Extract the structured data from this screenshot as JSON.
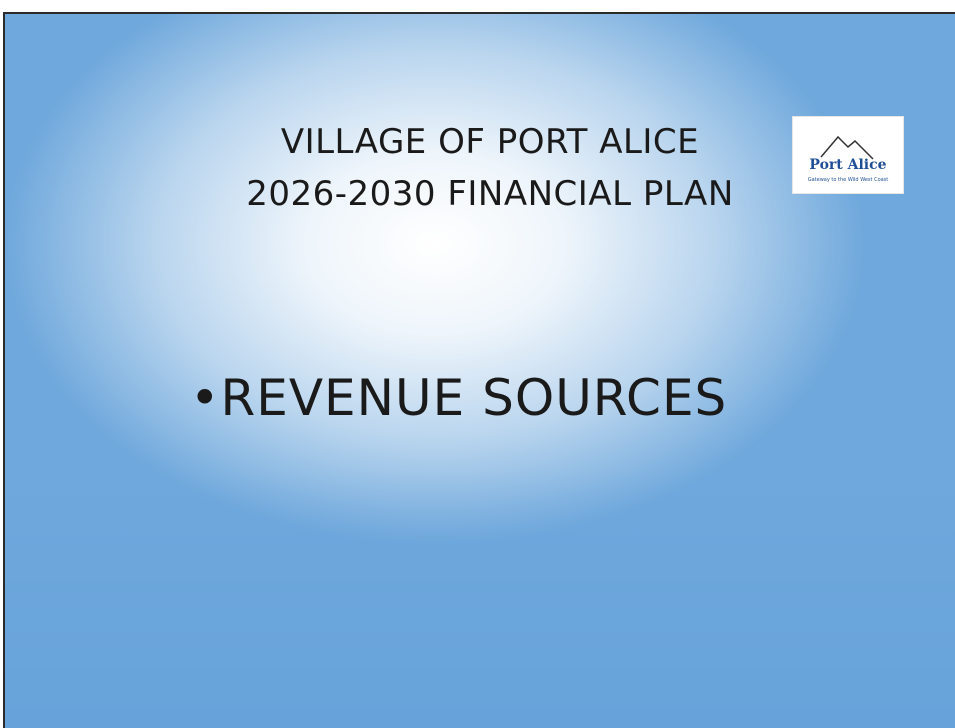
{
  "slide": {
    "title_lines": [
      "VILLAGE OF PORT ALICE",
      "2026-2030 FINANCIAL PLAN"
    ],
    "bullet": "•REVENUE SOURCES",
    "logo": {
      "name": "Port Alice",
      "tagline": "Gateway to the Wild West Coast"
    }
  }
}
